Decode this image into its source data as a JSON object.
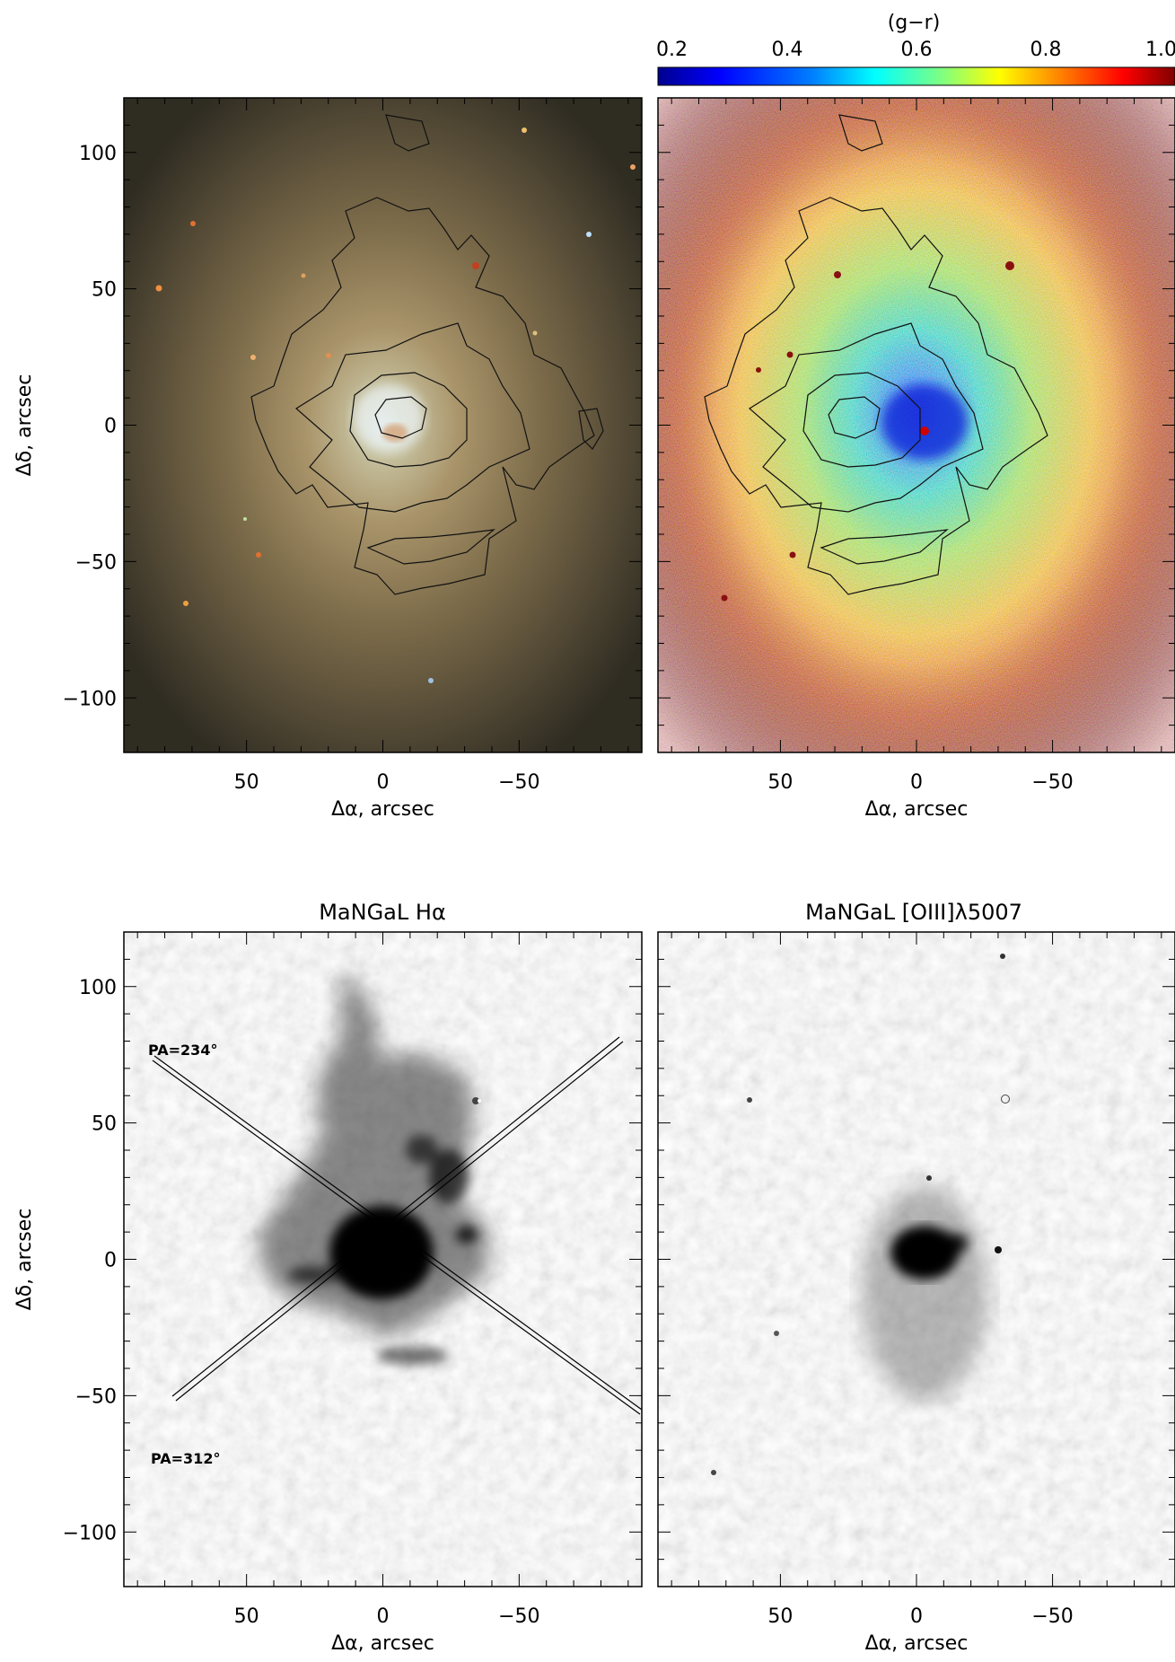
{
  "colorbar": {
    "label": "(g−r)",
    "ticks": [
      "0.2",
      "0.4",
      "0.6",
      "0.8",
      "1.0"
    ],
    "colormap": [
      "#00008f",
      "#0000ff",
      "#0080ff",
      "#00ffff",
      "#80ff80",
      "#ffff00",
      "#ff8000",
      "#ff0000",
      "#800000"
    ]
  },
  "panels": [
    {
      "id": "optical",
      "title": "",
      "xlabel": "Δα, arcsec",
      "ylabel": "Δδ, arcsec",
      "xticks": [
        "50",
        "0",
        "−50"
      ],
      "yticks": [
        "100",
        "50",
        "0",
        "−50",
        "−100"
      ],
      "xlim": [
        95,
        -95
      ],
      "ylim": [
        -120,
        120
      ],
      "image": "optical color composite, yellowish galaxy with bluish center",
      "contours": true
    },
    {
      "id": "color-map",
      "title": "",
      "xlabel": "Δα, arcsec",
      "ylabel": "",
      "xticks": [
        "50",
        "0",
        "−50"
      ],
      "yticks": [],
      "xlim": [
        95,
        -95
      ],
      "ylim": [
        -120,
        120
      ],
      "image": "g-r color index map",
      "contours": true
    },
    {
      "id": "halpha",
      "title": "MaNGaL Hα",
      "xlabel": "Δα, arcsec",
      "ylabel": "Δδ, arcsec",
      "xticks": [
        "50",
        "0",
        "−50"
      ],
      "yticks": [
        "100",
        "50",
        "0",
        "−50",
        "−100"
      ],
      "xlim": [
        95,
        -95
      ],
      "ylim": [
        -120,
        120
      ],
      "image": "grayscale H-alpha emission",
      "slits": [
        {
          "label": "PA=234°"
        },
        {
          "label": "PA=312°"
        }
      ]
    },
    {
      "id": "oiii",
      "title": "MaNGaL [OIII]λ5007",
      "xlabel": "Δα, arcsec",
      "ylabel": "",
      "xticks": [
        "50",
        "0",
        "−50"
      ],
      "yticks": [],
      "xlim": [
        95,
        -95
      ],
      "ylim": [
        -120,
        120
      ],
      "image": "grayscale OIII emission"
    }
  ]
}
